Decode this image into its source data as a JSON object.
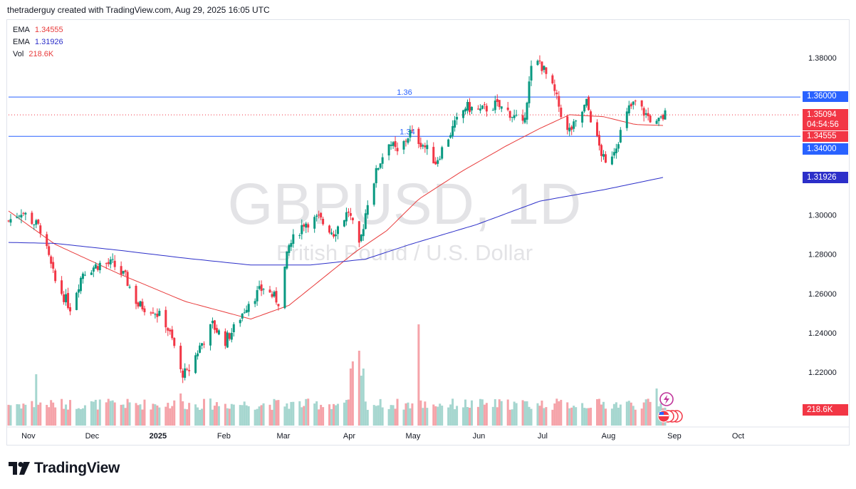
{
  "header": {
    "text": "thetraderguy created with TradingView.com, Aug 29, 2025 16:05 UTC"
  },
  "legend": [
    {
      "label": "EMA",
      "value": "1.34555",
      "color": "#e83b3b"
    },
    {
      "label": "EMA",
      "value": "1.31926",
      "color": "#2c2fc9"
    },
    {
      "label": "Vol",
      "value": "218.6K",
      "color": "#e83b3b"
    }
  ],
  "watermark": {
    "symbol": "GBPUSD, 1D",
    "description": "British Pound / U.S. Dollar"
  },
  "footer": {
    "brand": "TradingView"
  },
  "colors": {
    "up": "#089981",
    "down": "#f23645",
    "ema_fast": "#e83b3b",
    "ema_slow": "#2c2fc9",
    "hline": "#2962ff",
    "axis_text": "#131722"
  },
  "badges": {
    "level_136": "1.36000",
    "current": "1.35094",
    "countdown": "04:54:56",
    "ema_fast": "1.34555",
    "level_134": "1.34000",
    "ema_slow": "1.31926",
    "volume": "218.6K"
  },
  "annotations": {
    "line_136": "1.36",
    "line_134": "1.34"
  },
  "chart_data": {
    "type": "candlestick",
    "y_ticks": [
      "1.38000",
      "1.36000",
      "1.34000",
      "1.32000",
      "1.30000",
      "1.28000",
      "1.26000",
      "1.24000",
      "1.22000"
    ],
    "y_tick_values": [
      1.38,
      1.36,
      1.34,
      1.32,
      1.3,
      1.28,
      1.26,
      1.24,
      1.22
    ],
    "y_range": [
      1.2083,
      1.3933
    ],
    "x_ticks": [
      "Nov",
      "Dec",
      "2025",
      "Feb",
      "Mar",
      "Apr",
      "May",
      "Jun",
      "Jul",
      "Aug",
      "Sep",
      "Oct"
    ],
    "x_tick_dates": [
      "2024-11-01",
      "2024-12-01",
      "2025-01-01",
      "2025-02-01",
      "2025-03-01",
      "2025-04-01",
      "2025-05-01",
      "2025-06-01",
      "2025-07-01",
      "2025-08-01",
      "2025-09-01",
      "2025-10-01"
    ],
    "horizontal_levels": [
      {
        "label": "1.36",
        "value": 1.36
      },
      {
        "label": "1.34",
        "value": 1.34
      }
    ],
    "current_price": 1.35094,
    "ema_fast_last": 1.34555,
    "ema_slow_last": 1.31926,
    "price_path": [
      [
        "2024-10-24",
        1.297
      ],
      [
        "2024-10-30",
        1.302
      ],
      [
        "2024-11-05",
        1.296
      ],
      [
        "2024-11-08",
        1.293
      ],
      [
        "2024-11-15",
        1.266
      ],
      [
        "2024-11-22",
        1.253
      ],
      [
        "2024-11-28",
        1.271
      ],
      [
        "2024-12-06",
        1.275
      ],
      [
        "2024-12-12",
        1.275
      ],
      [
        "2024-12-18",
        1.268
      ],
      [
        "2024-12-24",
        1.254
      ],
      [
        "2024-12-31",
        1.252
      ],
      [
        "2025-01-06",
        1.245
      ],
      [
        "2025-01-10",
        1.233
      ],
      [
        "2025-01-13",
        1.22
      ],
      [
        "2025-01-16",
        1.219
      ],
      [
        "2025-01-22",
        1.233
      ],
      [
        "2025-01-28",
        1.244
      ],
      [
        "2025-02-03",
        1.236
      ],
      [
        "2025-02-07",
        1.242
      ],
      [
        "2025-02-14",
        1.256
      ],
      [
        "2025-02-21",
        1.263
      ],
      [
        "2025-02-28",
        1.256
      ],
      [
        "2025-03-05",
        1.284
      ],
      [
        "2025-03-12",
        1.296
      ],
      [
        "2025-03-19",
        1.298
      ],
      [
        "2025-03-26",
        1.291
      ],
      [
        "2025-04-02",
        1.302
      ],
      [
        "2025-04-07",
        1.283
      ],
      [
        "2025-04-11",
        1.307
      ],
      [
        "2025-04-16",
        1.325
      ],
      [
        "2025-04-21",
        1.338
      ],
      [
        "2025-04-25",
        1.331
      ],
      [
        "2025-05-01",
        1.342
      ],
      [
        "2025-05-07",
        1.336
      ],
      [
        "2025-05-13",
        1.327
      ],
      [
        "2025-05-20",
        1.342
      ],
      [
        "2025-05-27",
        1.355
      ],
      [
        "2025-06-03",
        1.353
      ],
      [
        "2025-06-10",
        1.356
      ],
      [
        "2025-06-17",
        1.352
      ],
      [
        "2025-06-23",
        1.345
      ],
      [
        "2025-06-27",
        1.374
      ],
      [
        "2025-07-01",
        1.378
      ],
      [
        "2025-07-08",
        1.362
      ],
      [
        "2025-07-14",
        1.342
      ],
      [
        "2025-07-18",
        1.346
      ],
      [
        "2025-07-23",
        1.357
      ],
      [
        "2025-07-28",
        1.338
      ],
      [
        "2025-08-01",
        1.325
      ],
      [
        "2025-08-06",
        1.336
      ],
      [
        "2025-08-12",
        1.354
      ],
      [
        "2025-08-15",
        1.357
      ],
      [
        "2025-08-20",
        1.351
      ],
      [
        "2025-08-25",
        1.346
      ],
      [
        "2025-08-29",
        1.351
      ]
    ],
    "ema_fast_path": [
      [
        "2024-10-24",
        1.302
      ],
      [
        "2024-11-15",
        1.285
      ],
      [
        "2024-12-15",
        1.27
      ],
      [
        "2025-01-15",
        1.256
      ],
      [
        "2025-02-15",
        1.247
      ],
      [
        "2025-03-05",
        1.254
      ],
      [
        "2025-03-20",
        1.267
      ],
      [
        "2025-04-05",
        1.281
      ],
      [
        "2025-04-20",
        1.292
      ],
      [
        "2025-05-05",
        1.308
      ],
      [
        "2025-05-25",
        1.322
      ],
      [
        "2025-06-15",
        1.335
      ],
      [
        "2025-07-01",
        1.344
      ],
      [
        "2025-07-15",
        1.351
      ],
      [
        "2025-07-31",
        1.35
      ],
      [
        "2025-08-15",
        1.346
      ],
      [
        "2025-08-29",
        1.3455
      ]
    ],
    "ema_slow_path": [
      [
        "2024-10-24",
        1.286
      ],
      [
        "2024-11-15",
        1.2855
      ],
      [
        "2024-12-15",
        1.282
      ],
      [
        "2025-01-15",
        1.278
      ],
      [
        "2025-02-15",
        1.2745
      ],
      [
        "2025-03-15",
        1.2745
      ],
      [
        "2025-04-10",
        1.2775
      ],
      [
        "2025-05-01",
        1.285
      ],
      [
        "2025-06-01",
        1.295
      ],
      [
        "2025-07-01",
        1.307
      ],
      [
        "2025-08-01",
        1.313
      ],
      [
        "2025-08-29",
        1.3193
      ]
    ]
  }
}
